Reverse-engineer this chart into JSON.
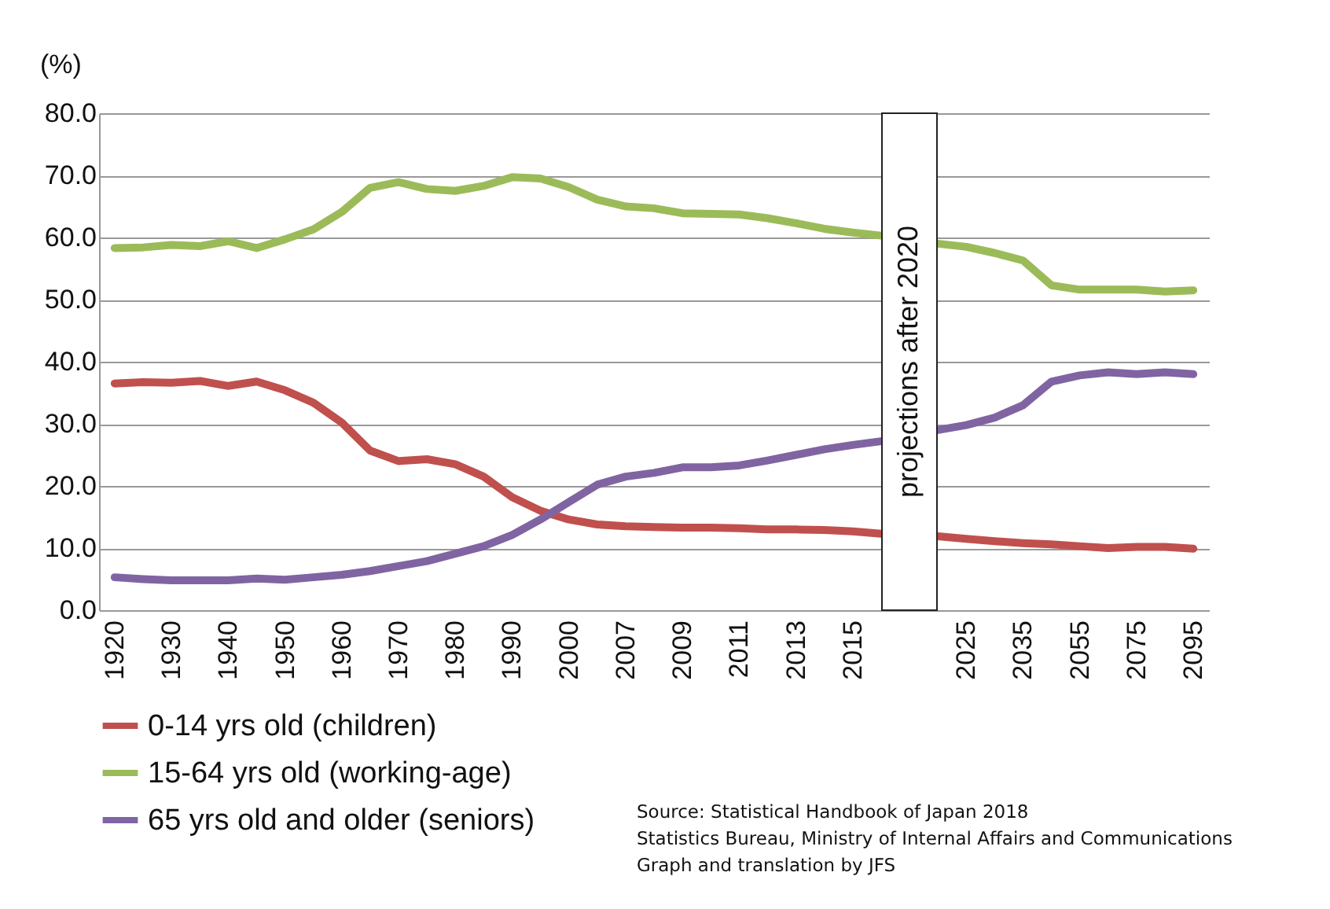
{
  "chart_data": {
    "type": "line",
    "ylabel": "(%)",
    "categories": [
      "1920",
      null,
      "1930",
      null,
      "1940",
      null,
      "1950",
      null,
      "1960",
      null,
      "1970",
      null,
      "1980",
      null,
      "1990",
      null,
      "2000",
      null,
      "2007",
      null,
      "2009",
      null,
      "2011",
      null,
      "2013",
      null,
      "2015",
      null,
      null,
      null,
      "2025",
      null,
      "2035",
      null,
      "2055",
      null,
      "2075",
      null,
      "2095"
    ],
    "series": [
      {
        "name": "0-14 yrs old (children)",
        "color": "#c0504d",
        "values": [
          36.5,
          36.7,
          36.6,
          36.9,
          36.1,
          36.8,
          35.4,
          33.4,
          30.2,
          25.7,
          24.0,
          24.3,
          23.5,
          21.5,
          18.2,
          16.0,
          14.6,
          13.8,
          13.5,
          13.4,
          13.3,
          13.3,
          13.2,
          13.0,
          13.0,
          12.9,
          12.7,
          12.3,
          null,
          11.9,
          11.5,
          11.1,
          10.8,
          10.6,
          10.3,
          10.0,
          10.2,
          10.2,
          9.9
        ]
      },
      {
        "name": "15-64 yrs old (working-age)",
        "color": "#9bbb59",
        "values": [
          58.3,
          58.4,
          58.8,
          58.6,
          59.4,
          58.3,
          59.7,
          61.3,
          64.1,
          68.0,
          68.9,
          67.8,
          67.5,
          68.3,
          69.7,
          69.5,
          68.1,
          66.1,
          65.0,
          64.7,
          63.9,
          63.8,
          63.7,
          63.1,
          62.3,
          61.4,
          60.8,
          60.3,
          null,
          59.0,
          58.5,
          57.5,
          56.3,
          52.3,
          51.6,
          51.6,
          51.6,
          51.3,
          51.5
        ]
      },
      {
        "name": "65 yrs old and older (seniors)",
        "color": "#8064a2",
        "values": [
          5.3,
          5.0,
          4.8,
          4.8,
          4.8,
          5.1,
          4.9,
          5.3,
          5.7,
          6.3,
          7.1,
          7.9,
          9.1,
          10.3,
          12.1,
          14.6,
          17.4,
          20.2,
          21.5,
          22.1,
          23.0,
          23.0,
          23.3,
          24.1,
          25.0,
          25.9,
          26.6,
          27.2,
          null,
          29.0,
          29.8,
          31.0,
          33.0,
          36.8,
          37.8,
          38.3,
          38.0,
          38.3,
          38.0
        ]
      }
    ],
    "ylim": [
      0,
      80
    ],
    "yticks": [
      {
        "value": 0,
        "label": "0.0"
      },
      {
        "value": 10,
        "label": "10.0"
      },
      {
        "value": 20,
        "label": "20.0"
      },
      {
        "value": 30,
        "label": "30.0"
      },
      {
        "value": 40,
        "label": "40.0"
      },
      {
        "value": 50,
        "label": "50.0"
      },
      {
        "value": 60,
        "label": "60.0"
      },
      {
        "value": 70,
        "label": "70.0"
      },
      {
        "value": 80,
        "label": "80.0"
      }
    ],
    "grid": "y",
    "legend": "bottom left",
    "marker": "none",
    "line_style": "solid",
    "annotations": [
      "projections after 2020",
      "Source: Statistical Handbook of Japan 2018",
      "Statistics Bureau, Ministry of Internal Affairs and Communications",
      "Graph and translation by JFS"
    ]
  }
}
